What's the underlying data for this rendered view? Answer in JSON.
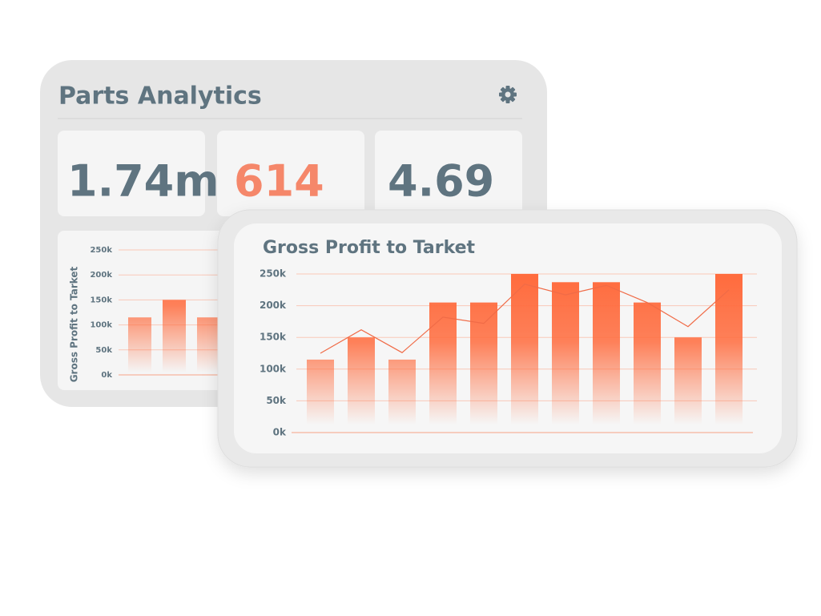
{
  "header": {
    "title": "Parts Analytics"
  },
  "kpis": [
    {
      "value": "1.74m",
      "color": "#5f7480"
    },
    {
      "value": "614",
      "color": "#f5876a"
    },
    {
      "value": "4.69",
      "color": "#5f7480"
    }
  ],
  "chart_data": [
    {
      "type": "bar",
      "ylabel": "Gross Profit to Tarket",
      "ylim": [
        0,
        250000
      ],
      "yticks": [
        {
          "value": 0,
          "label": "0k"
        },
        {
          "value": 50000,
          "label": "50k"
        },
        {
          "value": 100000,
          "label": "100k"
        },
        {
          "value": 150000,
          "label": "150k"
        },
        {
          "value": 200000,
          "label": "200k"
        },
        {
          "value": 250000,
          "label": "250k"
        }
      ],
      "grid": true,
      "series": [
        {
          "type": "bar",
          "color": "#ff6b3d",
          "values": [
            115000,
            150000,
            115000
          ]
        }
      ]
    },
    {
      "type": "bar",
      "title": "Gross Profit to Tarket",
      "ylim": [
        0,
        250000
      ],
      "yticks": [
        {
          "value": 0,
          "label": "0k"
        },
        {
          "value": 50000,
          "label": "50k"
        },
        {
          "value": 100000,
          "label": "100k"
        },
        {
          "value": 150000,
          "label": "150k"
        },
        {
          "value": 200000,
          "label": "200k"
        },
        {
          "value": 250000,
          "label": "250k"
        }
      ],
      "grid": true,
      "series": [
        {
          "type": "bar",
          "color": "#ff6b3d",
          "values": [
            115000,
            150000,
            115000,
            205000,
            205000,
            250000,
            237000,
            237000,
            205000,
            150000,
            250000
          ]
        },
        {
          "type": "line",
          "color": "#f06b47",
          "values": [
            125000,
            162000,
            126000,
            182000,
            172000,
            234000,
            217000,
            232000,
            205000,
            167000,
            225000
          ]
        }
      ]
    }
  ]
}
